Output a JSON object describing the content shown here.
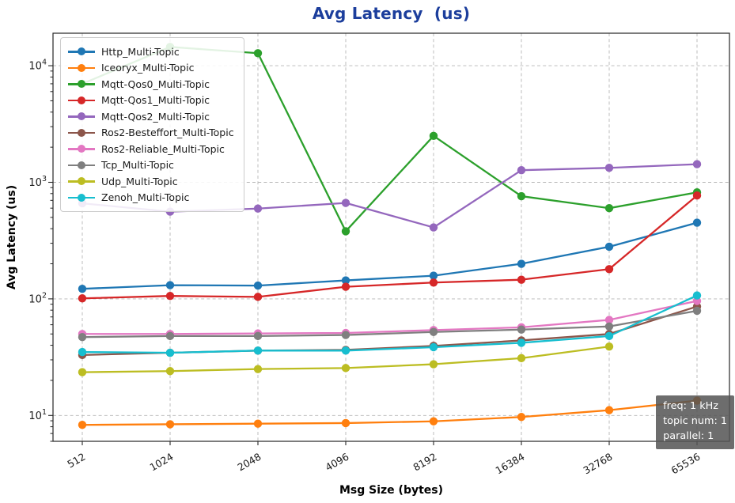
{
  "chart_data": {
    "type": "line",
    "title": "Avg Latency  (us)",
    "title_color": "#1c3e9c",
    "xlabel": "Msg Size (bytes)",
    "ylabel": "Avg Latency (us)",
    "x_categories": [
      "512",
      "1024",
      "2048",
      "4096",
      "8192",
      "16384",
      "32768",
      "65536"
    ],
    "yscale": "log",
    "ylim": [
      6,
      19000
    ],
    "y_major_tick_exponents": [
      1,
      2,
      3,
      4
    ],
    "grid": true,
    "grid_style": "dashed",
    "legend_position": "upper-left",
    "series": [
      {
        "name": "Http_Multi-Topic",
        "color": "#1f77b4",
        "values": [
          122,
          131,
          130,
          144,
          158,
          200,
          280,
          450
        ]
      },
      {
        "name": "Iceoryx_Multi-Topic",
        "color": "#ff7f0e",
        "values": [
          8.3,
          8.4,
          8.5,
          8.6,
          8.9,
          9.7,
          11.1,
          13.4
        ]
      },
      {
        "name": "Mqtt-Qos0_Multi-Topic",
        "color": "#2ca02c",
        "values": [
          7000,
          14500,
          12800,
          380,
          2500,
          760,
          600,
          820
        ]
      },
      {
        "name": "Mqtt-Qos1_Multi-Topic",
        "color": "#d62728",
        "values": [
          101,
          106,
          104,
          127,
          138,
          146,
          180,
          770
        ]
      },
      {
        "name": "Mqtt-Qos2_Multi-Topic",
        "color": "#9467bd",
        "values": [
          660,
          560,
          595,
          665,
          410,
          1270,
          1330,
          1430
        ]
      },
      {
        "name": "Ros2-Besteffort_Multi-Topic",
        "color": "#8c564b",
        "values": [
          33,
          34.5,
          36,
          36.5,
          39.5,
          44,
          50,
          86
        ]
      },
      {
        "name": "Ros2-Reliable_Multi-Topic",
        "color": "#e377c2",
        "values": [
          50,
          50,
          50.5,
          51,
          54,
          57,
          66,
          96
        ]
      },
      {
        "name": "Tcp_Multi-Topic",
        "color": "#7f7f7f",
        "values": [
          47,
          48,
          48,
          49,
          52,
          54.5,
          58,
          79
        ]
      },
      {
        "name": "Udp_Multi-Topic",
        "color": "#bcbd22",
        "values": [
          23.5,
          24,
          25,
          25.5,
          27.5,
          31,
          39,
          null
        ]
      },
      {
        "name": "Zenoh_Multi-Topic",
        "color": "#17becf",
        "values": [
          35,
          34.5,
          36,
          36,
          38.5,
          42,
          48,
          107
        ]
      }
    ],
    "annotation": {
      "lines": [
        "freq: 1 kHz",
        "topic num: 1",
        "parallel: 1"
      ],
      "bg": "#545454",
      "text_color": "#ffffff"
    }
  }
}
